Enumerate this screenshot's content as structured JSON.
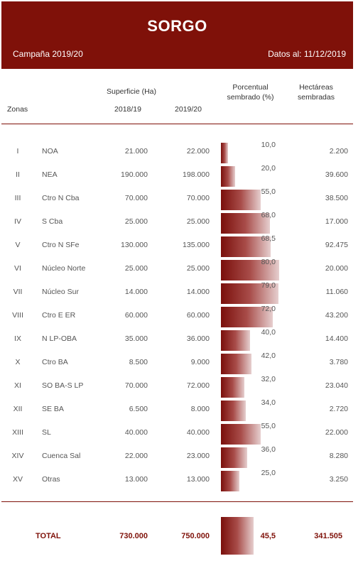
{
  "header": {
    "title": "SORGO",
    "campaign": "Campaña 2019/20",
    "date_label": "Datos al: 11/12/2019"
  },
  "columns": {
    "zones": "Zonas",
    "surface": "Superficie (Ha)",
    "year1": "2018/19",
    "year2": "2019/20",
    "pct_line1": "Porcentual",
    "pct_line2": "sembrado (%)",
    "ha_line1": "Hectáreas",
    "ha_line2": "sembradas"
  },
  "colors": {
    "brand": "#7f1109",
    "bar_dark": "#7a0f0b",
    "bar_light": "#e6cfcf"
  },
  "rows": [
    {
      "roman": "I",
      "zone": "NOA",
      "s1819": "21.000",
      "s1920": "22.000",
      "pct": "10,0",
      "pct_value": 10.0,
      "ha": "2.200"
    },
    {
      "roman": "II",
      "zone": "NEA",
      "s1819": "190.000",
      "s1920": "198.000",
      "pct": "20,0",
      "pct_value": 20.0,
      "ha": "39.600"
    },
    {
      "roman": "III",
      "zone": "Ctro N Cba",
      "s1819": "70.000",
      "s1920": "70.000",
      "pct": "55,0",
      "pct_value": 55.0,
      "ha": "38.500"
    },
    {
      "roman": "IV",
      "zone": "S Cba",
      "s1819": "25.000",
      "s1920": "25.000",
      "pct": "68,0",
      "pct_value": 68.0,
      "ha": "17.000"
    },
    {
      "roman": "V",
      "zone": "Ctro N SFe",
      "s1819": "130.000",
      "s1920": "135.000",
      "pct": "68,5",
      "pct_value": 68.5,
      "ha": "92.475"
    },
    {
      "roman": "VI",
      "zone": "Núcleo Norte",
      "s1819": "25.000",
      "s1920": "25.000",
      "pct": "80,0",
      "pct_value": 80.0,
      "ha": "20.000"
    },
    {
      "roman": "VII",
      "zone": "Núcleo Sur",
      "s1819": "14.000",
      "s1920": "14.000",
      "pct": "79,0",
      "pct_value": 79.0,
      "ha": "11.060"
    },
    {
      "roman": "VIII",
      "zone": "Ctro E ER",
      "s1819": "60.000",
      "s1920": "60.000",
      "pct": "72,0",
      "pct_value": 72.0,
      "ha": "43.200"
    },
    {
      "roman": "IX",
      "zone": "N LP-OBA",
      "s1819": "35.000",
      "s1920": "36.000",
      "pct": "40,0",
      "pct_value": 40.0,
      "ha": "14.400"
    },
    {
      "roman": "X",
      "zone": "Ctro BA",
      "s1819": "8.500",
      "s1920": "9.000",
      "pct": "42,0",
      "pct_value": 42.0,
      "ha": "3.780"
    },
    {
      "roman": "XI",
      "zone": "SO BA-S LP",
      "s1819": "70.000",
      "s1920": "72.000",
      "pct": "32,0",
      "pct_value": 32.0,
      "ha": "23.040"
    },
    {
      "roman": "XII",
      "zone": "SE BA",
      "s1819": "6.500",
      "s1920": "8.000",
      "pct": "34,0",
      "pct_value": 34.0,
      "ha": "2.720"
    },
    {
      "roman": "XIII",
      "zone": "SL",
      "s1819": "40.000",
      "s1920": "40.000",
      "pct": "55,0",
      "pct_value": 55.0,
      "ha": "22.000"
    },
    {
      "roman": "XIV",
      "zone": "Cuenca Sal",
      "s1819": "22.000",
      "s1920": "23.000",
      "pct": "36,0",
      "pct_value": 36.0,
      "ha": "8.280"
    },
    {
      "roman": "XV",
      "zone": "Otras",
      "s1819": "13.000",
      "s1920": "13.000",
      "pct": "25,0",
      "pct_value": 25.0,
      "ha": "3.250"
    }
  ],
  "total": {
    "label": "TOTAL",
    "s1819": "730.000",
    "s1920": "750.000",
    "pct": "45,5",
    "pct_value": 45.5,
    "ha": "341.505"
  }
}
